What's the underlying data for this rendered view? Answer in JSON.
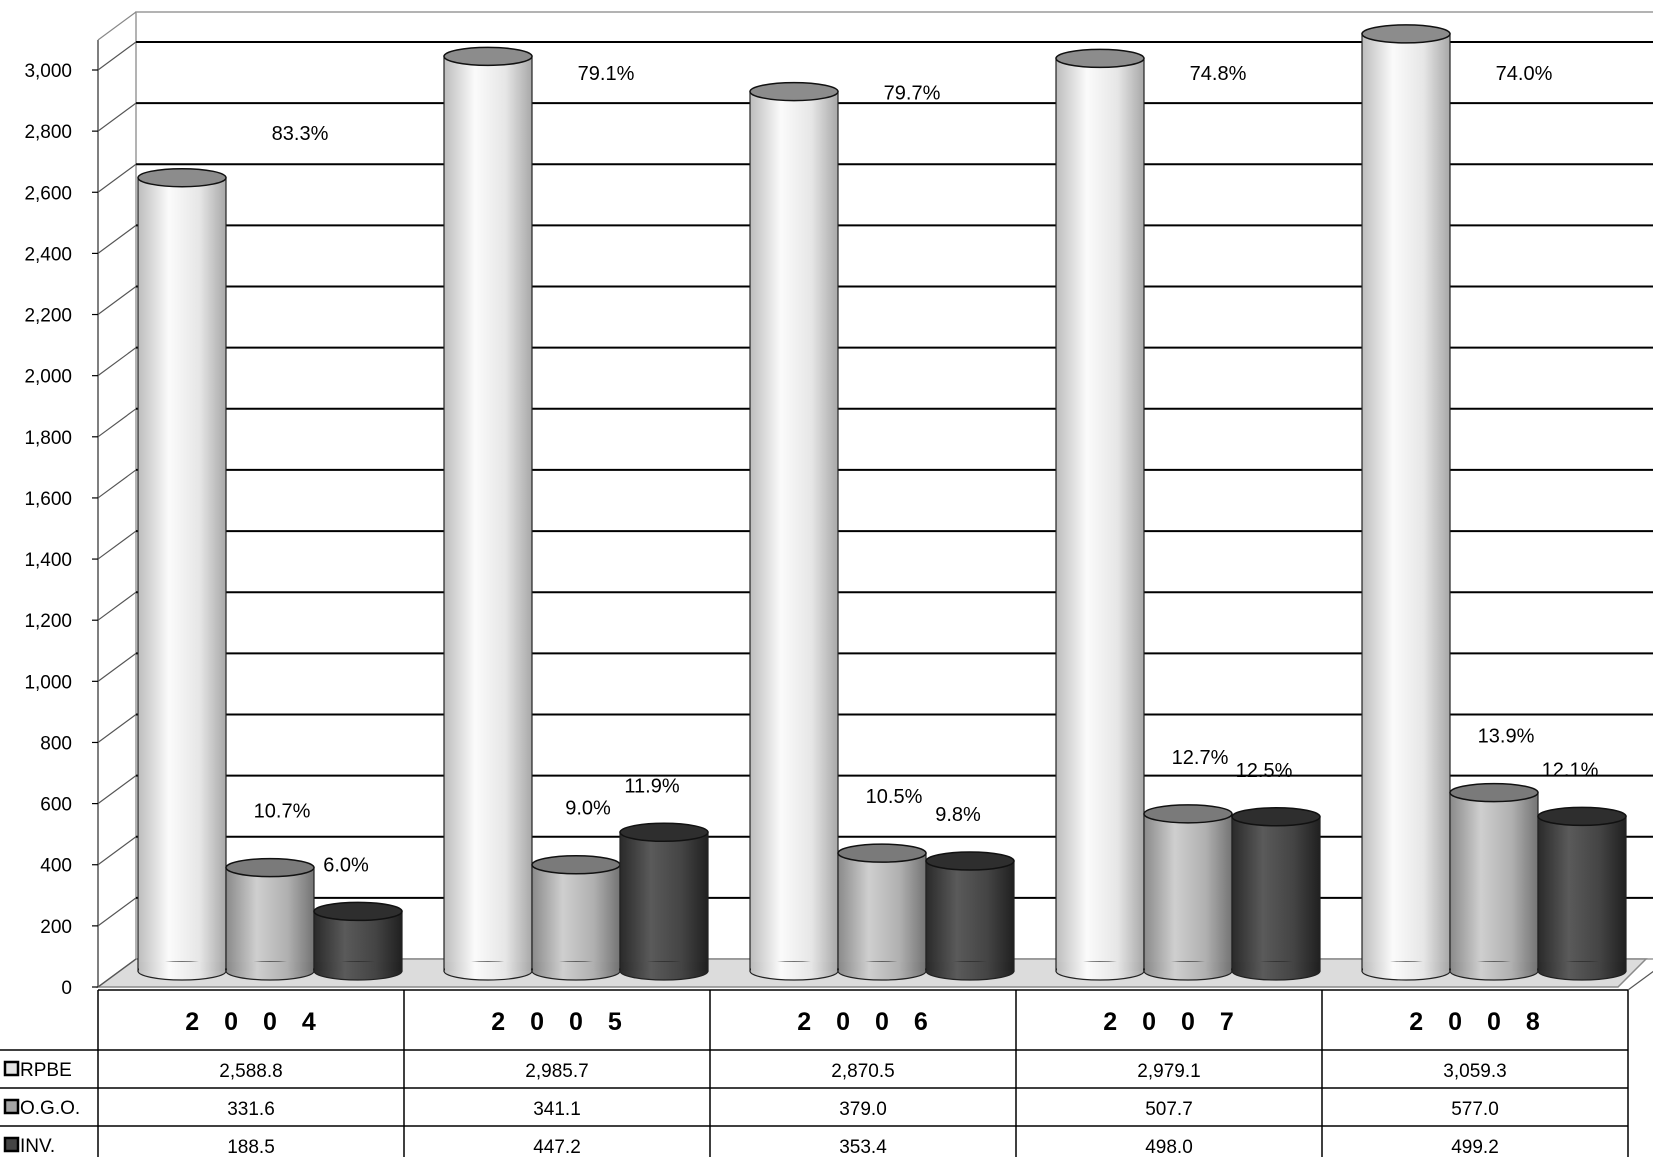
{
  "chart_data": {
    "type": "bar",
    "style": "3d-cylinder",
    "categories": [
      "2 0 0 4",
      "2 0 0 5",
      "2 0 0 6",
      "2 0 0 7",
      "2 0 0 8"
    ],
    "series": [
      {
        "name": "RPBE",
        "color": "#e4e4e4",
        "values": [
          2588.8,
          2985.7,
          2870.5,
          2979.1,
          3059.3
        ],
        "value_labels": [
          "2,588.8",
          "2,985.7",
          "2,870.5",
          "2,979.1",
          "3,059.3"
        ],
        "pct_labels": [
          "83.3%",
          "79.1%",
          "79.7%",
          "74.8%",
          "74.0%"
        ]
      },
      {
        "name": "O.G.O.",
        "color": "#a6a6a6",
        "values": [
          331.6,
          341.1,
          379.0,
          507.7,
          577.0
        ],
        "value_labels": [
          "331.6",
          "341.1",
          "379.0",
          "507.7",
          "577.0"
        ],
        "pct_labels": [
          "10.7%",
          "9.0%",
          "10.5%",
          "12.7%",
          "13.9%"
        ]
      },
      {
        "name": "INV.",
        "color": "#444444",
        "values": [
          188.5,
          447.2,
          353.4,
          498.0,
          499.2
        ],
        "value_labels": [
          "188.5",
          "447.2",
          "353.4",
          "498.0",
          "499.2"
        ],
        "pct_labels": [
          "6.0%",
          "11.9%",
          "9.8%",
          "12.5%",
          "12.1%"
        ]
      }
    ],
    "y_ticks": [
      "0",
      "200",
      "400",
      "600",
      "800",
      "1,000",
      "1,200",
      "1,400",
      "1,600",
      "1,800",
      "2,000",
      "2,200",
      "2,400",
      "2,600",
      "2,800",
      "3,000"
    ],
    "ylim": [
      0,
      3000
    ],
    "grid": true,
    "legend": "data-table-below"
  }
}
